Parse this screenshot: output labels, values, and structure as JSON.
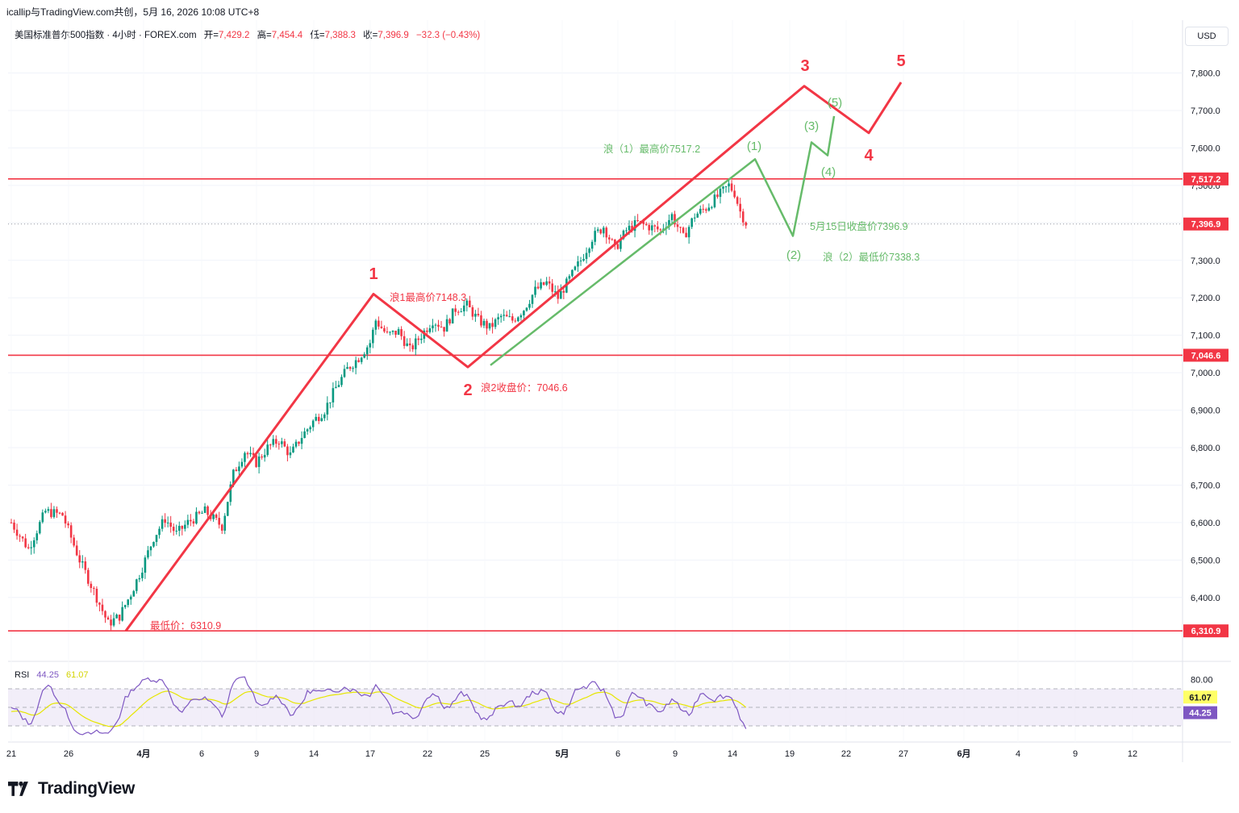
{
  "header": {
    "title": "icallip与TradingView.com共创，5月 16, 2026 10:08 UTC+8"
  },
  "legend": {
    "symbol": "美国标准普尔500指数 · 4小时 · FOREX.com",
    "open_label": "开=",
    "open": "7,429.2",
    "high_label": "高=",
    "high": "7,454.4",
    "low_label": "低=",
    "low": "7,388.3",
    "close_label": "收=",
    "close": "7,396.9",
    "change": "−32.3 (−0.43%)"
  },
  "currency_button": "USD",
  "colors": {
    "up": "#089981",
    "down": "#f23645",
    "impulse": "#f23645",
    "subwave": "#66bb6a",
    "rsi": "#7e57c2",
    "rsi_ma": "#e6e600",
    "rsi_band": "#ede7f6"
  },
  "chart_data": {
    "type": "candlestick",
    "interval": "4h",
    "ylim": [
      6250,
      7900
    ],
    "y_ticks": [
      "6,400.0",
      "6,500.0",
      "6,600.0",
      "6,700.0",
      "6,800.0",
      "6,900.0",
      "7,000.0",
      "7,100.0",
      "7,200.0",
      "7,300.0",
      "7,400.0",
      "7,500.0",
      "7,600.0",
      "7,700.0",
      "7,800.0"
    ],
    "y_tick_values": [
      6400,
      6500,
      6600,
      6700,
      6800,
      6900,
      7000,
      7100,
      7200,
      7300,
      7400,
      7500,
      7600,
      7700,
      7800
    ],
    "x_tick_labels": [
      "21",
      "26",
      "4月",
      "6",
      "9",
      "14",
      "17",
      "22",
      "25",
      "5月",
      "6",
      "9",
      "14",
      "19",
      "22",
      "27",
      "6月",
      "4",
      "9",
      "12"
    ],
    "price_points": [
      [
        0,
        6600
      ],
      [
        3,
        6530
      ],
      [
        6,
        6630
      ],
      [
        9,
        6620
      ],
      [
        12,
        6500
      ],
      [
        15,
        6400
      ],
      [
        17,
        6330
      ],
      [
        19,
        6350
      ],
      [
        21,
        6410
      ],
      [
        23,
        6480
      ],
      [
        25,
        6560
      ],
      [
        27,
        6610
      ],
      [
        29,
        6570
      ],
      [
        31,
        6600
      ],
      [
        34,
        6630
      ],
      [
        37,
        6590
      ],
      [
        39,
        6730
      ],
      [
        41,
        6790
      ],
      [
        43,
        6760
      ],
      [
        45,
        6800
      ],
      [
        47,
        6820
      ],
      [
        49,
        6780
      ],
      [
        51,
        6830
      ],
      [
        53,
        6870
      ],
      [
        55,
        6900
      ],
      [
        57,
        6960
      ],
      [
        59,
        7010
      ],
      [
        61,
        7040
      ],
      [
        63,
        7080
      ],
      [
        64,
        7140
      ],
      [
        66,
        7100
      ],
      [
        68,
        7110
      ],
      [
        70,
        7060
      ],
      [
        72,
        7100
      ],
      [
        74,
        7140
      ],
      [
        76,
        7120
      ],
      [
        78,
        7170
      ],
      [
        80,
        7180
      ],
      [
        82,
        7140
      ],
      [
        84,
        7120
      ],
      [
        86,
        7150
      ],
      [
        88,
        7140
      ],
      [
        90,
        7170
      ],
      [
        92,
        7220
      ],
      [
        94,
        7240
      ],
      [
        96,
        7200
      ],
      [
        98,
        7250
      ],
      [
        100,
        7300
      ],
      [
        102,
        7360
      ],
      [
        104,
        7390
      ],
      [
        106,
        7330
      ],
      [
        108,
        7380
      ],
      [
        110,
        7400
      ],
      [
        112,
        7390
      ],
      [
        114,
        7380
      ],
      [
        116,
        7420
      ],
      [
        118,
        7360
      ],
      [
        120,
        7420
      ],
      [
        122,
        7440
      ],
      [
        124,
        7470
      ],
      [
        126,
        7500
      ],
      [
        127,
        7480
      ],
      [
        128,
        7430
      ],
      [
        129,
        7400
      ]
    ],
    "horizontal_levels": [
      {
        "label": "7,517.2",
        "value": 7517.2
      },
      {
        "label": "7,046.6",
        "value": 7046.6
      },
      {
        "label": "6,310.9",
        "value": 6310.9
      }
    ],
    "last_price": {
      "label": "7,396.9",
      "value": 7396.9
    },
    "impulse_wave": {
      "labels": [
        "1",
        "2",
        "3",
        "4",
        "5"
      ],
      "points": [
        [
          6310.9,
          "0"
        ],
        [
          7210,
          "1"
        ],
        [
          7015,
          "2"
        ],
        [
          7765,
          "3"
        ],
        [
          7640,
          "4"
        ],
        [
          7775,
          "5"
        ]
      ]
    },
    "sub_wave": {
      "labels": [
        "(1)",
        "(2)",
        "(3)",
        "(4)",
        "(5)"
      ],
      "points": [
        [
          7020,
          "0"
        ],
        [
          7570,
          "(1)"
        ],
        [
          7365,
          "(2)"
        ],
        [
          7615,
          "(3)"
        ],
        [
          7580,
          "(4)"
        ],
        [
          7685,
          "(5)"
        ]
      ]
    },
    "annotations": [
      {
        "text": "浪1最高价7148.3",
        "color": "#f23645"
      },
      {
        "text": "浪2收盘价：7046.6",
        "color": "#f23645"
      },
      {
        "text": "最低价：6310.9",
        "color": "#f23645"
      },
      {
        "text": "浪（1）最高价7517.2",
        "color": "#66bb6a"
      },
      {
        "text": "5月15日收盘价7396.9",
        "color": "#66bb6a"
      },
      {
        "text": "浪（2）最低价7338.3",
        "color": "#66bb6a"
      }
    ],
    "rsi": {
      "label": "RSI",
      "value": "44.25",
      "ma_value": "61.07",
      "axis_label": "80.00",
      "upper": 70,
      "lower": 30
    }
  },
  "branding": {
    "logo_text": "TradingView"
  }
}
